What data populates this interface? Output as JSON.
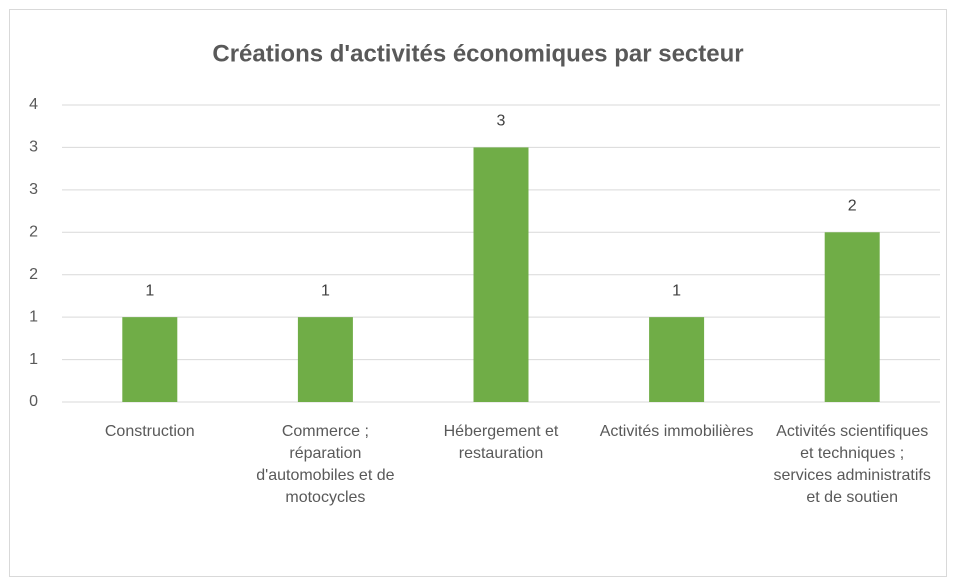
{
  "chart_data": {
    "type": "bar",
    "title": "Créations d'activités économiques par secteur",
    "categories": [
      "Construction",
      "Commerce ; réparation d'automobiles et de motocycles",
      "Hébergement et restauration",
      "Activités immobilières",
      "Activités scientifiques et techniques ; services administratifs et de soutien"
    ],
    "values": [
      1,
      1,
      3,
      1,
      2
    ],
    "color": "#70ad47",
    "ylim": [
      0,
      3.5
    ],
    "yticks": [
      0,
      {
        "value": 0.5,
        "label": "1"
      },
      1,
      {
        "value": 1.5,
        "label": "2"
      },
      2,
      {
        "value": 2.5,
        "label": "3"
      },
      3,
      {
        "value": 3.5,
        "label": "4"
      }
    ],
    "grid": true
  }
}
